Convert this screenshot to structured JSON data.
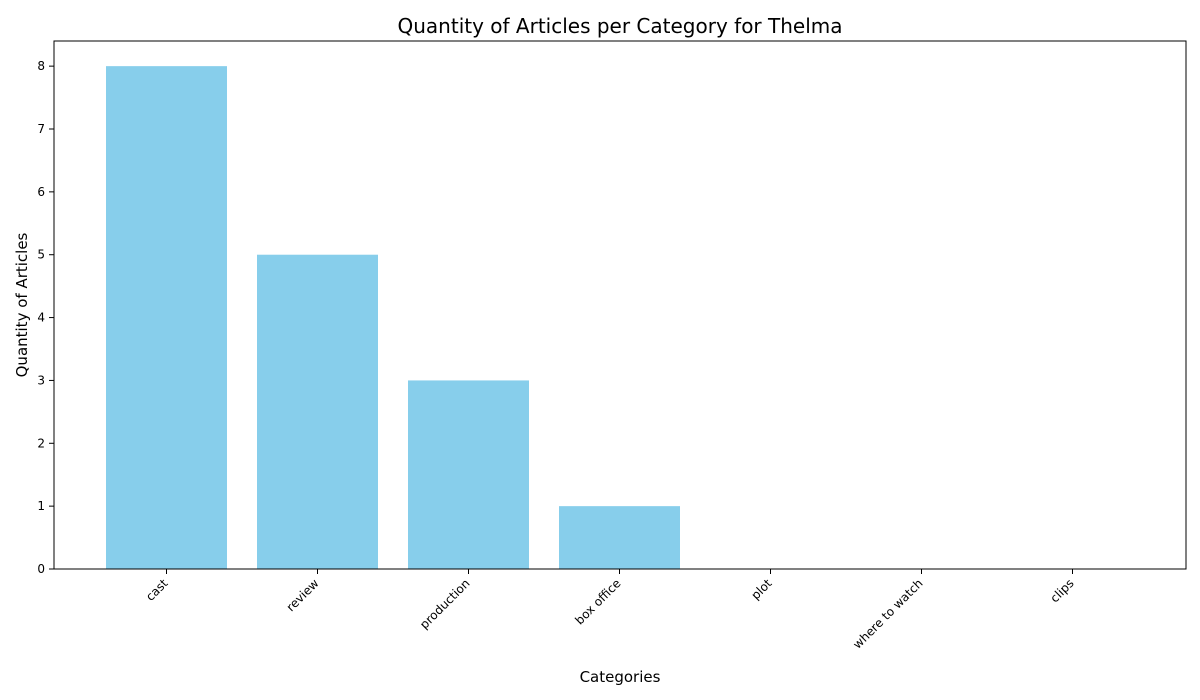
{
  "chart_data": {
    "type": "bar",
    "title": "Quantity of Articles per Category for Thelma",
    "xlabel": "Categories",
    "ylabel": "Quantity of Articles",
    "categories": [
      "cast",
      "review",
      "production",
      "box office",
      "plot",
      "where to watch",
      "clips"
    ],
    "values": [
      8,
      5,
      3,
      1,
      0,
      0,
      0
    ],
    "ylim": [
      0,
      8.4
    ],
    "yticks": [
      0,
      1,
      2,
      3,
      4,
      5,
      6,
      7,
      8
    ],
    "grid": false,
    "legend": "none",
    "bar_color": "#87CEEB"
  }
}
